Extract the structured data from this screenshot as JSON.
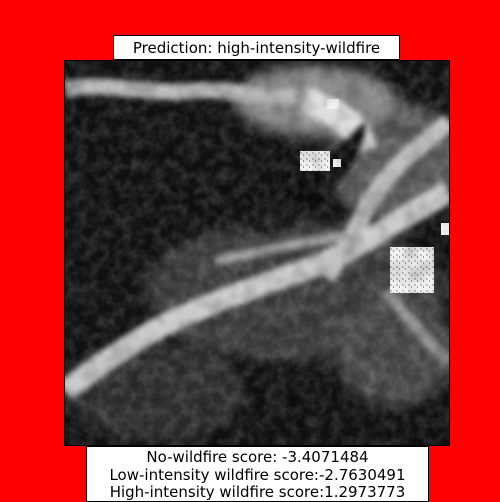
{
  "colors": {
    "background": "#ff0000",
    "label_box": "#ffffff",
    "border": "#000000"
  },
  "prediction": {
    "label": "Prediction: high-intensity-wildfire"
  },
  "image": {
    "icon": "satellite-terrain-image",
    "tone": "grayscale"
  },
  "scores": {
    "no_wildfire": "No-wildfire score: -3.4071484",
    "low_intensity": "Low-intensity wildfire score:-2.7630491",
    "high_intensity": "High-intensity wildfire score:1.2973773"
  }
}
